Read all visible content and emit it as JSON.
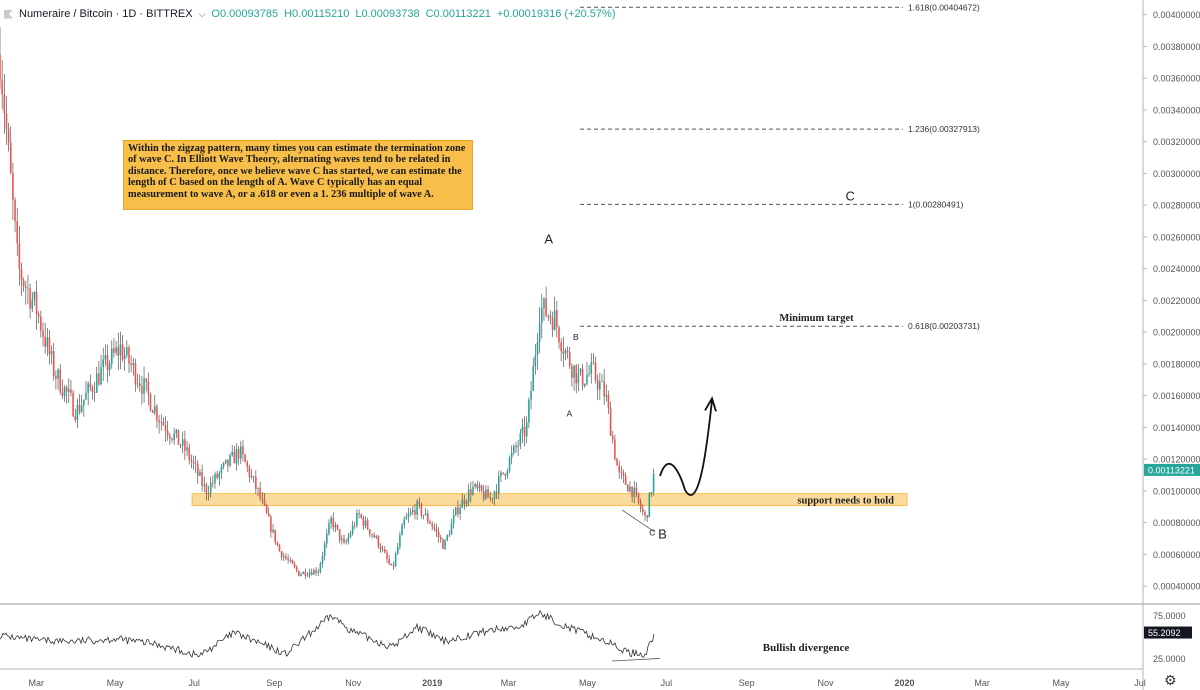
{
  "header": {
    "symbol": "Numeraire / Bitcoin · 1D · BITTREX",
    "open": "O0.00093785",
    "high": "H0.00115210",
    "low": "L0.00093738",
    "close": "C0.00113221",
    "change": "+0.00019316 (+20.57%)"
  },
  "note_text": "Within the zigzag pattern, many times you can estimate the termination zone of wave C. In Elliott Wave Theory, alternating waves tend to be related in distance. Therefore, once we believe wave C has started, we can estimate the length of C based on the length of A. Wave C typically has an equal measurement to wave A, or a .618 or even a 1. 236 multiple of wave A.",
  "colors": {
    "up": "#26a69a",
    "down": "#ef5350",
    "support": "#f7be4a",
    "axis_text": "#555555"
  },
  "chart_data": {
    "type": "candlestick",
    "x_ticks": [
      "Mar",
      "May",
      "Jul",
      "Sep",
      "Nov",
      "2019",
      "Mar",
      "May",
      "Jul",
      "Sep",
      "Nov",
      "2020",
      "Mar",
      "May",
      "Jul"
    ],
    "y_ticks": [
      "0.00400000",
      "0.00380000",
      "0.00360000",
      "0.00340000",
      "0.00320000",
      "0.00300000",
      "0.00280000",
      "0.00260000",
      "0.00240000",
      "0.00220000",
      "0.00200000",
      "0.00180000",
      "0.00160000",
      "0.00140000",
      "0.00120000",
      "0.00100000",
      "0.00080000",
      "0.00060000",
      "0.00040000"
    ],
    "ylim": [
      0.0003,
      0.00408
    ],
    "last_price": "0.00113221",
    "price_path": [
      {
        "t": "2018-02-01",
        "v": 0.00375
      },
      {
        "t": "2018-02-15",
        "v": 0.0024
      },
      {
        "t": "2018-03-01",
        "v": 0.00215
      },
      {
        "t": "2018-03-15",
        "v": 0.00175
      },
      {
        "t": "2018-04-01",
        "v": 0.0015
      },
      {
        "t": "2018-04-20",
        "v": 0.00175
      },
      {
        "t": "2018-05-05",
        "v": 0.0019
      },
      {
        "t": "2018-05-20",
        "v": 0.0017
      },
      {
        "t": "2018-06-05",
        "v": 0.00145
      },
      {
        "t": "2018-06-25",
        "v": 0.00125
      },
      {
        "t": "2018-07-10",
        "v": 0.001
      },
      {
        "t": "2018-07-25",
        "v": 0.00115
      },
      {
        "t": "2018-08-05",
        "v": 0.00125
      },
      {
        "t": "2018-08-20",
        "v": 0.00098
      },
      {
        "t": "2018-09-05",
        "v": 0.00062
      },
      {
        "t": "2018-09-20",
        "v": 0.00048
      },
      {
        "t": "2018-10-05",
        "v": 0.0005
      },
      {
        "t": "2018-10-15",
        "v": 0.00082
      },
      {
        "t": "2018-10-25",
        "v": 0.00065
      },
      {
        "t": "2018-11-05",
        "v": 0.00085
      },
      {
        "t": "2018-11-20",
        "v": 0.00068
      },
      {
        "t": "2018-12-01",
        "v": 0.0005
      },
      {
        "t": "2018-12-10",
        "v": 0.0008
      },
      {
        "t": "2018-12-20",
        "v": 0.0009
      },
      {
        "t": "2018-12-31",
        "v": 0.0008
      },
      {
        "t": "2019-01-10",
        "v": 0.00065
      },
      {
        "t": "2019-01-20",
        "v": 0.00088
      },
      {
        "t": "2019-02-01",
        "v": 0.00102
      },
      {
        "t": "2019-02-15",
        "v": 0.00095
      },
      {
        "t": "2019-03-01",
        "v": 0.00118
      },
      {
        "t": "2019-03-15",
        "v": 0.0014
      },
      {
        "t": "2019-03-20",
        "v": 0.00175
      },
      {
        "t": "2019-03-25",
        "v": 0.00215
      },
      {
        "t": "2019-04-05",
        "v": 0.0021
      },
      {
        "t": "2019-04-15",
        "v": 0.00185
      },
      {
        "t": "2019-04-25",
        "v": 0.0017
      },
      {
        "t": "2019-05-05",
        "v": 0.00175
      },
      {
        "t": "2019-05-15",
        "v": 0.0016
      },
      {
        "t": "2019-05-25",
        "v": 0.0011
      },
      {
        "t": "2019-06-05",
        "v": 0.001
      },
      {
        "t": "2019-06-15",
        "v": 0.00082
      },
      {
        "t": "2019-06-22",
        "v": 0.00113
      }
    ],
    "fib_levels": [
      {
        "price": 0.00404672,
        "label": "1.618(0.00404672)"
      },
      {
        "price": 0.00327913,
        "label": "1.236(0.00327913)"
      },
      {
        "price": 0.00280491,
        "label": "1(0.00280491)"
      },
      {
        "price": 0.00203731,
        "label": "0.618(0.00203731)"
      }
    ],
    "support_zone": {
      "low": 0.00092,
      "high": 0.00097,
      "label": "support needs to hold"
    },
    "annotations": [
      {
        "text": "A",
        "t": "2019-04-01",
        "price": 0.00256
      },
      {
        "text": "B",
        "t": "2019-06-28",
        "price": 0.0007
      },
      {
        "text": "C",
        "t": "2019-11-20",
        "price": 0.00283
      },
      {
        "text": "B",
        "t": "2019-04-22",
        "price": 0.00195
      },
      {
        "text": "A",
        "t": "2019-04-17",
        "price": 0.00147
      },
      {
        "text": "C",
        "t": "2019-06-20",
        "price": 0.00072
      },
      {
        "text": "Minimum target",
        "t": "2019-10-25",
        "price": 0.00207
      }
    ],
    "rsi": {
      "ticks": [
        "75.0000",
        "25.0000"
      ],
      "last": "55.2092",
      "ylim": [
        15,
        85
      ],
      "label": "Bullish divergence",
      "path": [
        {
          "t": "2018-02-01",
          "v": 52
        },
        {
          "t": "2018-03-01",
          "v": 46
        },
        {
          "t": "2018-04-01",
          "v": 45
        },
        {
          "t": "2018-05-01",
          "v": 48
        },
        {
          "t": "2018-06-01",
          "v": 42
        },
        {
          "t": "2018-07-05",
          "v": 28
        },
        {
          "t": "2018-08-01",
          "v": 55
        },
        {
          "t": "2018-09-10",
          "v": 30
        },
        {
          "t": "2018-10-15",
          "v": 75
        },
        {
          "t": "2018-11-01",
          "v": 56
        },
        {
          "t": "2018-12-01",
          "v": 38
        },
        {
          "t": "2018-12-20",
          "v": 62
        },
        {
          "t": "2019-01-10",
          "v": 45
        },
        {
          "t": "2019-02-15",
          "v": 58
        },
        {
          "t": "2019-03-10",
          "v": 62
        },
        {
          "t": "2019-03-25",
          "v": 78
        },
        {
          "t": "2019-04-15",
          "v": 62
        },
        {
          "t": "2019-05-15",
          "v": 45
        },
        {
          "t": "2019-06-01",
          "v": 32
        },
        {
          "t": "2019-06-15",
          "v": 30
        },
        {
          "t": "2019-06-22",
          "v": 55
        }
      ]
    }
  }
}
